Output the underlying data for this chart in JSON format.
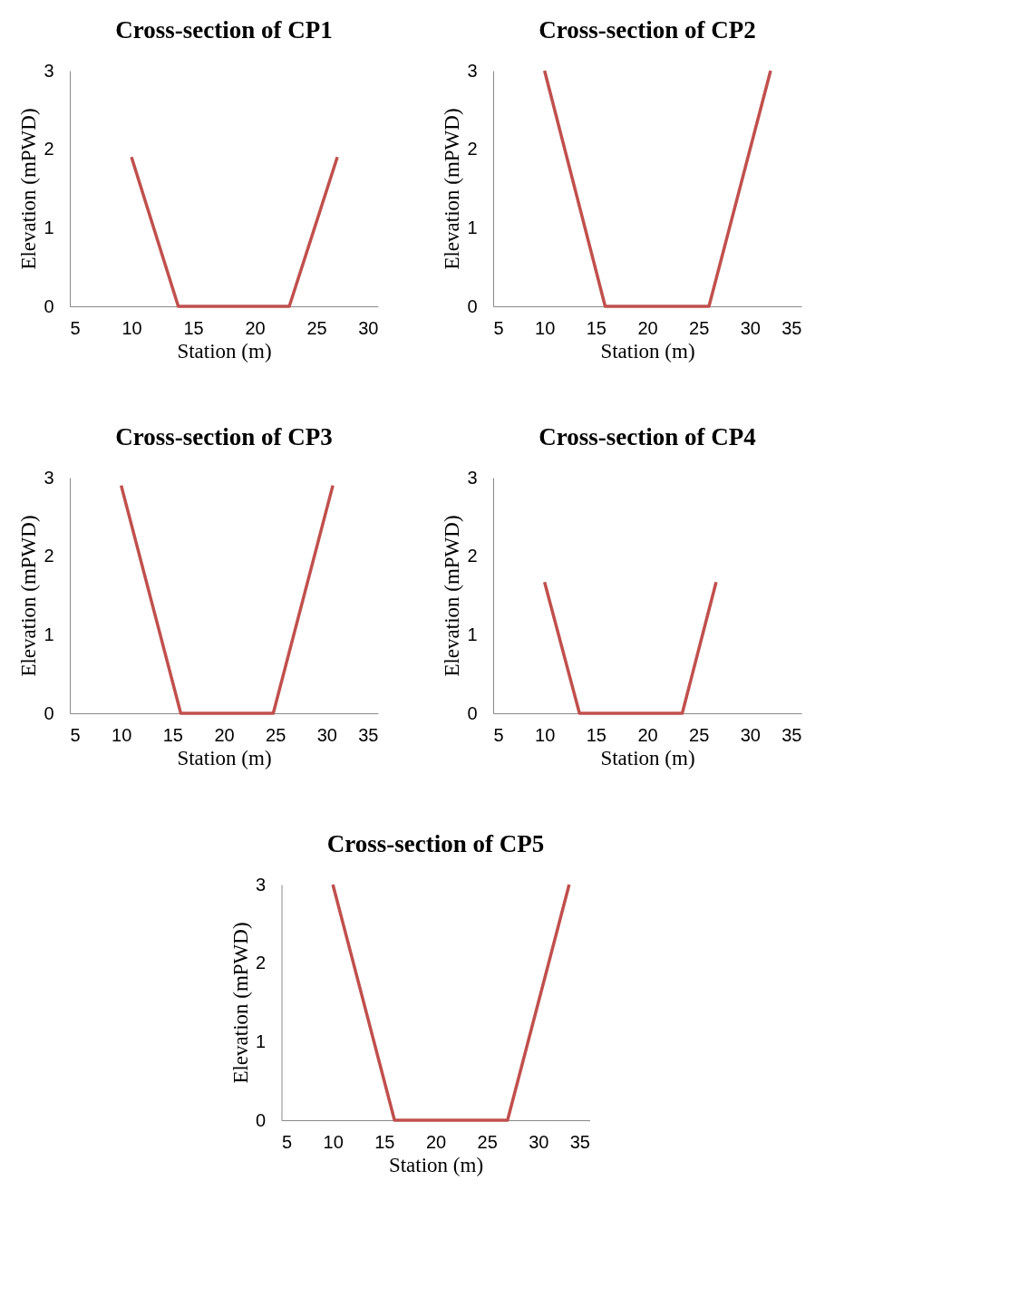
{
  "chart_data": [
    {
      "type": "line",
      "title": "Cross-section of CP1",
      "xlabel": "Station (m)",
      "ylabel": "Elevation (mPWD)",
      "x": [
        10,
        13.8,
        22.8,
        26.7
      ],
      "series": [
        {
          "color": "#c0504d",
          "values": [
            1.9,
            0,
            0,
            1.9
          ]
        }
      ],
      "xlim": [
        5,
        30
      ],
      "xticks": [
        5,
        10,
        15,
        20,
        25,
        30
      ],
      "ylim": [
        0,
        3
      ],
      "yticks": [
        0,
        1,
        2,
        3
      ],
      "grid": false,
      "legend": false,
      "marker": "none"
    },
    {
      "type": "line",
      "title": "Cross-section of CP2",
      "xlabel": "Station (m)",
      "ylabel": "Elevation (mPWD)",
      "x": [
        10,
        15.9,
        26,
        32
      ],
      "series": [
        {
          "color": "#c0504d",
          "values": [
            3,
            0,
            0,
            3
          ]
        }
      ],
      "xlim": [
        5,
        35
      ],
      "xticks": [
        5,
        10,
        15,
        20,
        25,
        30,
        35
      ],
      "ylim": [
        0,
        3
      ],
      "yticks": [
        0,
        1,
        2,
        3
      ],
      "grid": false,
      "legend": false,
      "marker": "none"
    },
    {
      "type": "line",
      "title": "Cross-section of CP3",
      "xlabel": "Station (m)",
      "ylabel": "Elevation (mPWD)",
      "x": [
        10,
        15.8,
        24.8,
        30.6
      ],
      "series": [
        {
          "color": "#c0504d",
          "values": [
            2.9,
            0,
            0,
            2.9
          ]
        }
      ],
      "xlim": [
        5,
        35
      ],
      "xticks": [
        5,
        10,
        15,
        20,
        25,
        30,
        35
      ],
      "ylim": [
        0,
        3
      ],
      "yticks": [
        0,
        1,
        2,
        3
      ],
      "grid": false,
      "legend": false,
      "marker": "none"
    },
    {
      "type": "line",
      "title": "Cross-section of CP4",
      "xlabel": "Station (m)",
      "ylabel": "Elevation (mPWD)",
      "x": [
        10,
        13.4,
        23.4,
        26.7
      ],
      "series": [
        {
          "color": "#c0504d",
          "values": [
            1.67,
            0,
            0,
            1.67
          ]
        }
      ],
      "xlim": [
        5,
        35
      ],
      "xticks": [
        5,
        10,
        15,
        20,
        25,
        30,
        35
      ],
      "ylim": [
        0,
        3
      ],
      "yticks": [
        0,
        1,
        2,
        3
      ],
      "grid": false,
      "legend": false,
      "marker": "none"
    },
    {
      "type": "line",
      "title": "Cross-section of CP5",
      "xlabel": "Station (m)",
      "ylabel": "Elevation (mPWD)",
      "x": [
        10,
        16,
        27,
        33
      ],
      "series": [
        {
          "color": "#c0504d",
          "values": [
            3,
            0,
            0,
            3
          ]
        }
      ],
      "xlim": [
        5,
        35
      ],
      "xticks": [
        5,
        10,
        15,
        20,
        25,
        30,
        35
      ],
      "ylim": [
        0,
        3
      ],
      "yticks": [
        0,
        1,
        2,
        3
      ],
      "grid": false,
      "legend": false,
      "marker": "none"
    }
  ]
}
